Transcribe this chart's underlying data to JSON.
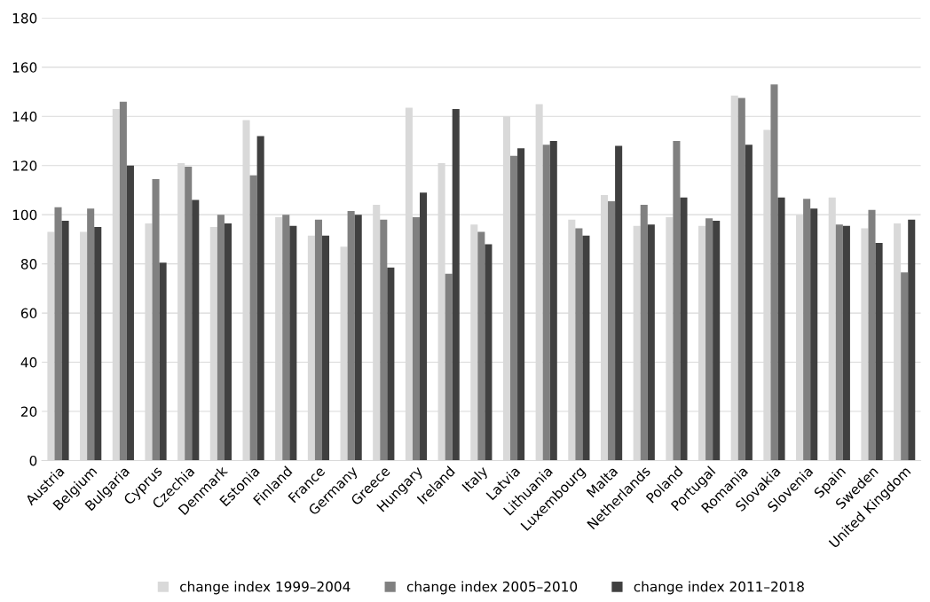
{
  "chart_data": {
    "type": "bar",
    "categories": [
      "Austria",
      "Belgium",
      "Bulgaria",
      "Cyprus",
      "Czechia",
      "Denmark",
      "Estonia",
      "Finland",
      "France",
      "Germany",
      "Greece",
      "Hungary",
      "Ireland",
      "Italy",
      "Latvia",
      "Lithuania",
      "Luxembourg",
      "Malta",
      "Netherlands",
      "Poland",
      "Portugal",
      "Romania",
      "Slovakia",
      "Slovenia",
      "Spain",
      "Sweden",
      "United Kingdom"
    ],
    "series": [
      {
        "name": "change index 1999–2004",
        "color": "#d9d9d9",
        "values": [
          93,
          93,
          143,
          96.5,
          121,
          95,
          138.5,
          99,
          91.5,
          87,
          104,
          143.5,
          121,
          96,
          140,
          145,
          98,
          108,
          95.5,
          99,
          95.5,
          148.5,
          134.5,
          100,
          107,
          94.5,
          96.5
        ]
      },
      {
        "name": "change index 2005–2010",
        "color": "#808080",
        "values": [
          103,
          102.5,
          146,
          114.5,
          119.5,
          100,
          116,
          100,
          98,
          101.5,
          98,
          99,
          76,
          93,
          124,
          128.5,
          94.5,
          105.5,
          104,
          130,
          98.5,
          147.5,
          153,
          106.5,
          96,
          102,
          76.5
        ]
      },
      {
        "name": "change index 2011–2018",
        "color": "#404040",
        "values": [
          97.5,
          95,
          120,
          80.5,
          106,
          96.5,
          132,
          95.5,
          91.5,
          100,
          78.5,
          109,
          143,
          88,
          127,
          130,
          91.5,
          128,
          96,
          107,
          97.5,
          128.5,
          107,
          102.5,
          95.5,
          88.5,
          98
        ]
      }
    ],
    "ylim": [
      0,
      180
    ],
    "yticks": [
      0,
      20,
      40,
      60,
      80,
      100,
      120,
      140,
      160,
      180
    ],
    "grid": "y",
    "legend": "bottom"
  }
}
